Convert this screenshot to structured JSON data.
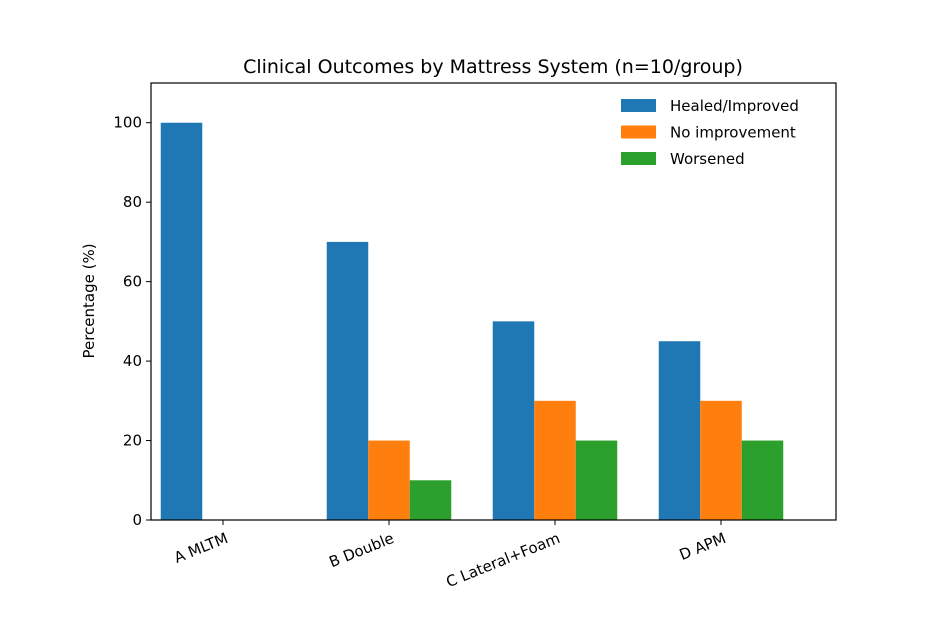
{
  "chart_data": {
    "type": "bar",
    "title": "Clinical Outcomes by Mattress System (n=10/group)",
    "xlabel": "",
    "ylabel": "Percentage (%)",
    "categories": [
      "A MLTM",
      "B Double",
      "C Lateral+Foam",
      "D APM"
    ],
    "series": [
      {
        "name": "Healed/Improved",
        "color": "#1f77b4",
        "values": [
          100,
          70,
          50,
          45
        ]
      },
      {
        "name": "No improvement",
        "color": "#ff7f0e",
        "values": [
          0,
          20,
          30,
          30
        ]
      },
      {
        "name": "Worsened",
        "color": "#2ca02c",
        "values": [
          0,
          10,
          20,
          20
        ]
      }
    ],
    "ylim": [
      0,
      110
    ],
    "yticks": [
      0,
      20,
      40,
      60,
      80,
      100
    ],
    "grid": false,
    "legend": "top-right"
  }
}
